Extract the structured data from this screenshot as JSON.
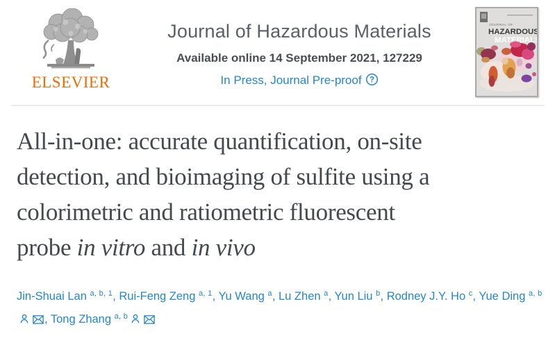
{
  "header": {
    "publisher_wordmark": "ELSEVIER",
    "journal_title": "Journal of Hazardous Materials",
    "available_line": "Available online 14 September 2021, 127229",
    "status_link": "In Press, Journal Pre-proof",
    "help_glyph": "?",
    "cover": {
      "top_label": "JOURNAL OF",
      "title_line1": "HAZARDOUS",
      "title_line2": "MATERIALS"
    }
  },
  "article": {
    "title_lines": [
      [
        {
          "text": "All-in-one: accurate quantification, on-site"
        }
      ],
      [
        {
          "text": "detection, and bioimaging of sulfite using a"
        }
      ],
      [
        {
          "text": "colorimetric and ratiometric fluorescent"
        }
      ],
      [
        {
          "text": "probe "
        },
        {
          "text": "in vitro",
          "italic": true
        },
        {
          "text": " and "
        },
        {
          "text": "in vivo",
          "italic": true
        }
      ]
    ],
    "authors": [
      {
        "name": "Jin-Shuai Lan",
        "affiliations": "a, b, 1"
      },
      {
        "name": "Rui-Feng Zeng",
        "affiliations": "a, 1"
      },
      {
        "name": "Yu Wang",
        "affiliations": "a"
      },
      {
        "name": "Lu Zhen",
        "affiliations": "a"
      },
      {
        "name": "Yun Liu",
        "affiliations": "b"
      },
      {
        "name": "Rodney J.Y. Ho",
        "affiliations": "c"
      },
      {
        "name": "Yue Ding",
        "affiliations": "a, b",
        "has_profile_icon": true,
        "has_email_icon": true
      },
      {
        "name": "Tong Zhang",
        "affiliations": "a, b",
        "has_profile_icon": true,
        "has_email_icon": true
      }
    ]
  },
  "colors": {
    "link_blue": "#2287c8",
    "elsevier_orange": "#ef6c00",
    "journal_gray": "#5a6067",
    "title_gray": "#45494e"
  }
}
